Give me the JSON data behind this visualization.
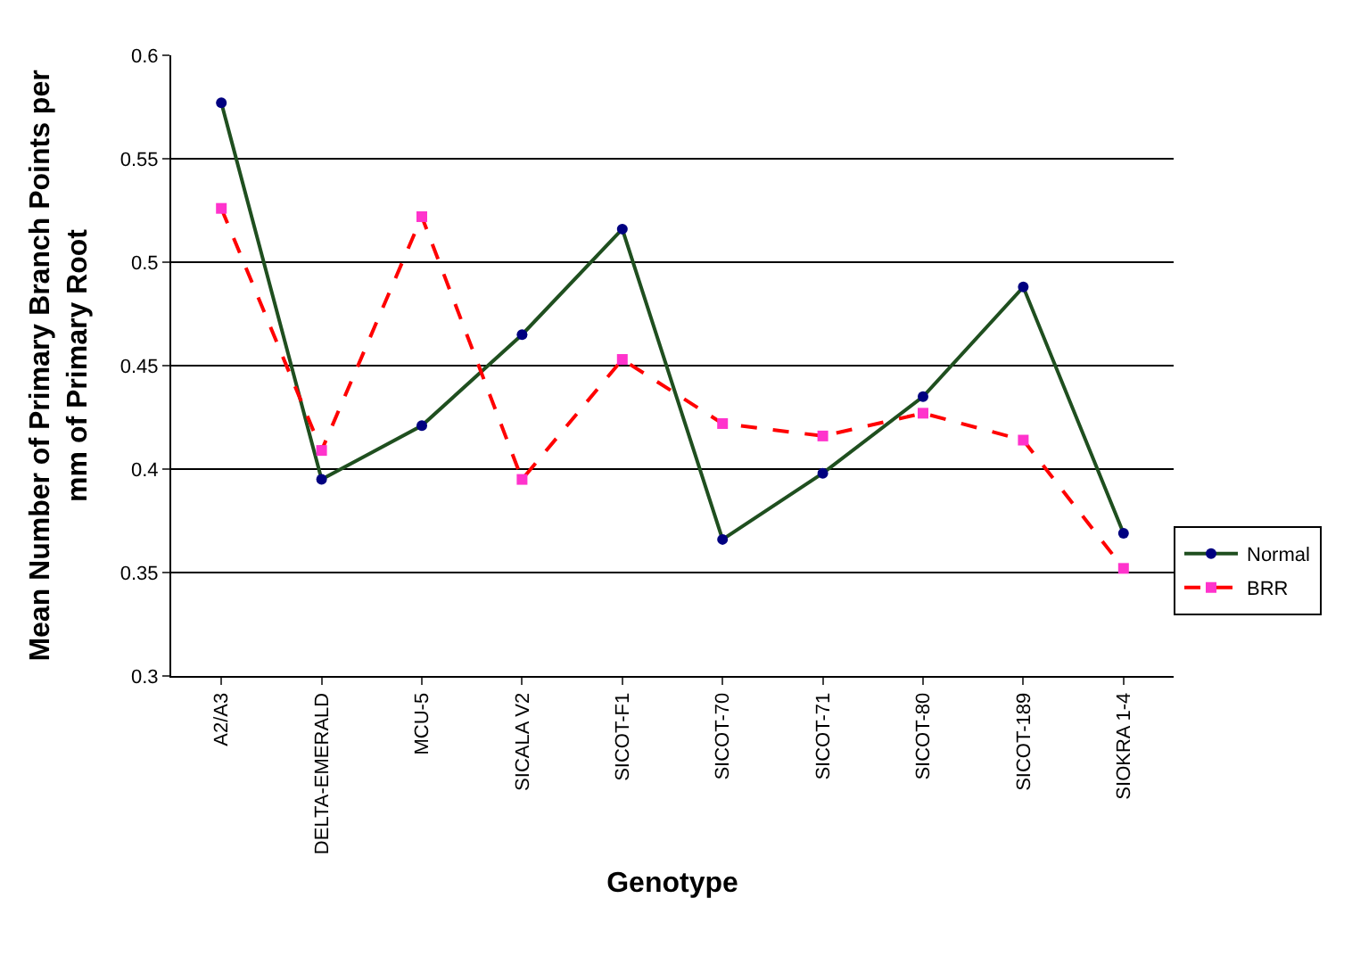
{
  "chart_data": {
    "type": "line",
    "xlabel": "Genotype",
    "ylabel": "Mean Number of Primary Branch Points per mm of Primary Root",
    "categories": [
      "A2/A3",
      "DELTA-EMERALD",
      "MCU-5",
      "SICALA V2",
      "SICOT-F1",
      "SICOT-70",
      "SICOT-71",
      "SICOT-80",
      "SICOT-189",
      "SIOKRA 1-4"
    ],
    "series": [
      {
        "name": "Normal",
        "color": "#1f4f1f",
        "marker": "circle",
        "line_style": "solid",
        "values": [
          0.577,
          0.395,
          0.421,
          0.465,
          0.516,
          0.366,
          0.398,
          0.435,
          0.488,
          0.369
        ]
      },
      {
        "name": "BRR",
        "color": "#ff0000",
        "marker": "square",
        "line_style": "dashed",
        "values": [
          0.526,
          0.409,
          0.522,
          0.395,
          0.453,
          0.422,
          0.416,
          0.427,
          0.414,
          0.352
        ]
      }
    ],
    "ylim": [
      0.3,
      0.6
    ],
    "yticks": [
      0.3,
      0.35,
      0.4,
      0.45,
      0.5,
      0.55,
      0.6
    ],
    "grid": "y",
    "legend": "right"
  }
}
